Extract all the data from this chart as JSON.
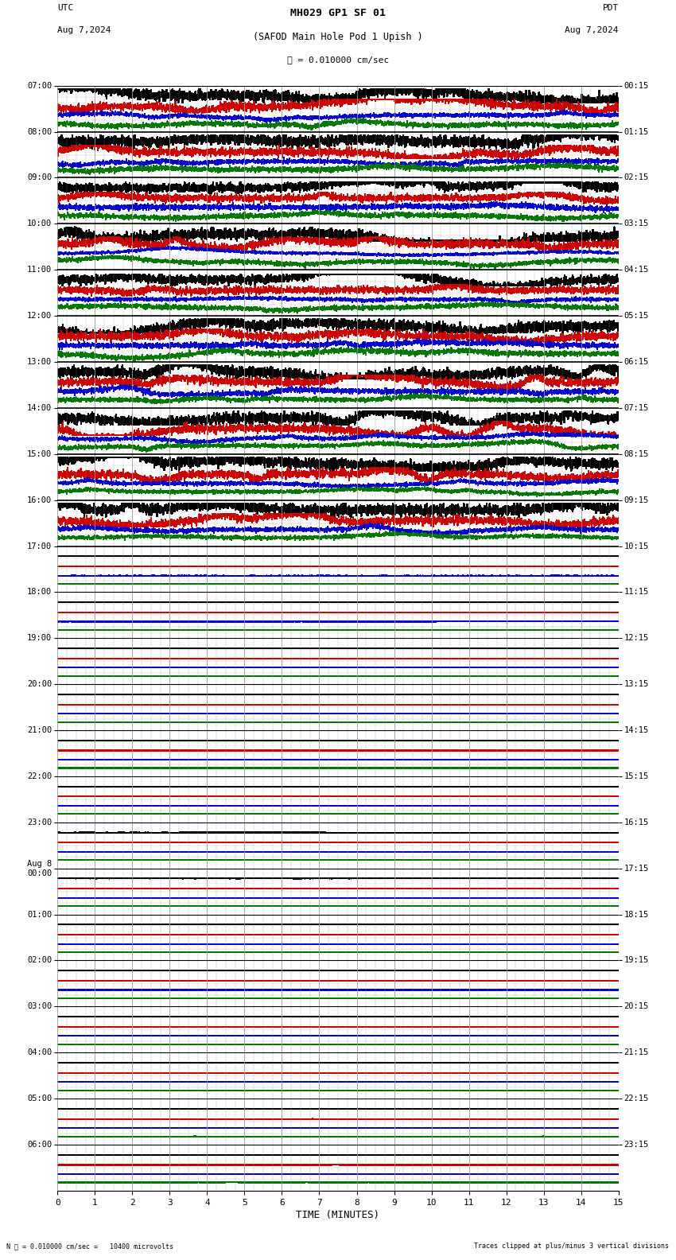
{
  "title_line1": "MH029 GP1 SF 01",
  "title_line2": "(SAFOD Main Hole Pod 1 Upish )",
  "scale_text": "= 0.010000 cm/sec",
  "utc_label": "UTC",
  "utc_date": "Aug 7,2024",
  "pdt_label": "PDT",
  "pdt_date": "Aug 7,2024",
  "bottom_left": "= 0.010000 cm/sec =   10400 microvolts",
  "bottom_right": "Traces clipped at plus/minus 3 vertical divisions",
  "xlabel": "TIME (MINUTES)",
  "left_times": [
    "07:00",
    "08:00",
    "09:00",
    "10:00",
    "11:00",
    "12:00",
    "13:00",
    "14:00",
    "15:00",
    "16:00",
    "17:00",
    "18:00",
    "19:00",
    "20:00",
    "21:00",
    "22:00",
    "23:00",
    "Aug 8\n00:00",
    "01:00",
    "02:00",
    "03:00",
    "04:00",
    "05:00",
    "06:00"
  ],
  "right_times": [
    "00:15",
    "01:15",
    "02:15",
    "03:15",
    "04:15",
    "05:15",
    "06:15",
    "07:15",
    "08:15",
    "09:15",
    "10:15",
    "11:15",
    "12:15",
    "13:15",
    "14:15",
    "15:15",
    "16:15",
    "17:15",
    "18:15",
    "19:15",
    "20:15",
    "21:15",
    "22:15",
    "23:15"
  ],
  "n_rows": 24,
  "n_traces_per_row": 4,
  "minutes": 15,
  "colors": [
    "#000000",
    "#cc0000",
    "#0000cc",
    "#007700"
  ],
  "background_color": "#ffffff",
  "grid_color": "#999999",
  "fig_width": 8.5,
  "fig_height": 15.84,
  "dpi": 100,
  "active_rows": 10,
  "row_activity": [
    4.0,
    2.5,
    2.0,
    3.5,
    2.0,
    3.0,
    3.5,
    4.0,
    3.0,
    2.5,
    0.15,
    0.08,
    0.06,
    0.05,
    0.05,
    0.05,
    0.05,
    0.05,
    0.05,
    0.05,
    0.05,
    0.05,
    0.05,
    0.05
  ]
}
